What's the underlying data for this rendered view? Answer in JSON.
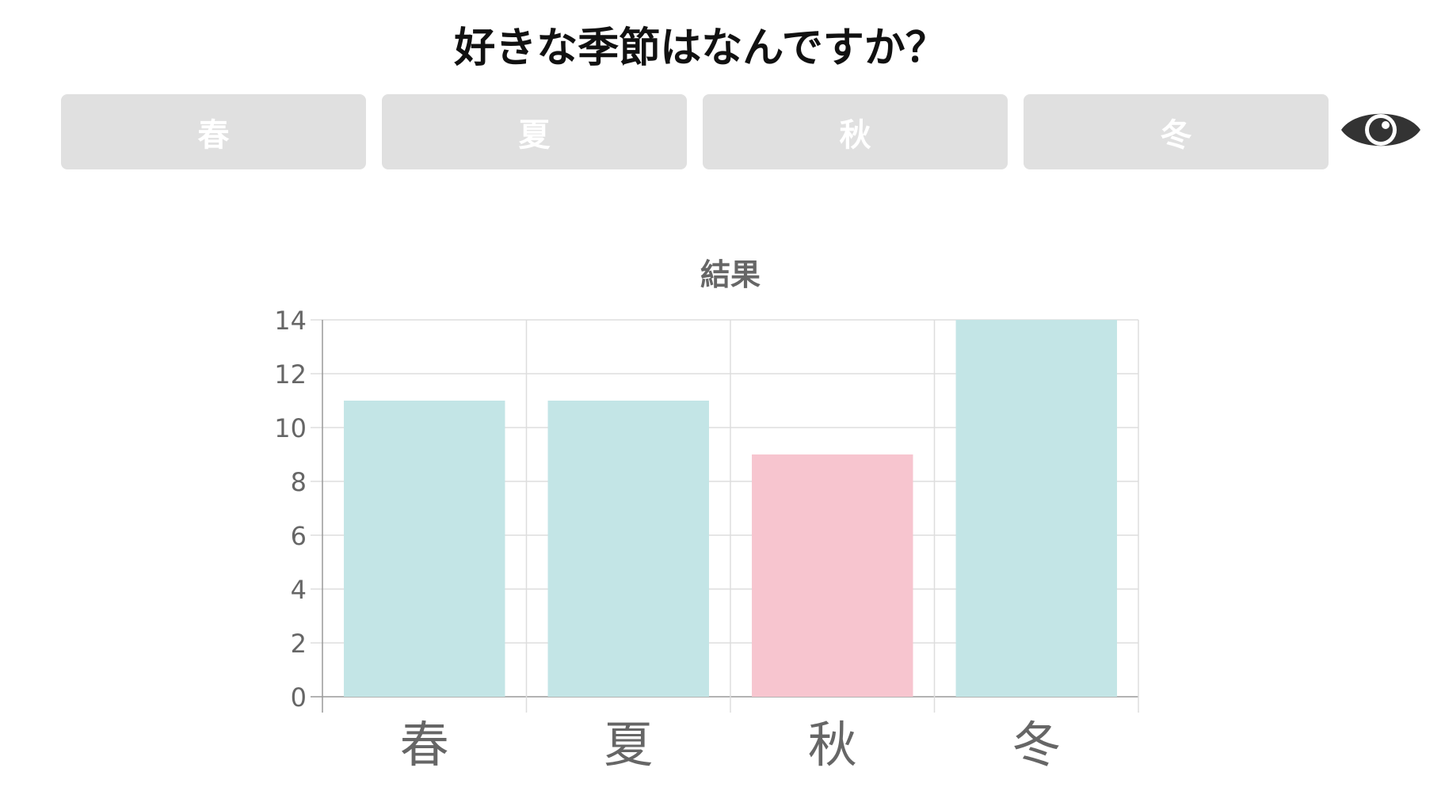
{
  "question": "好きな季節はなんですか？",
  "choices": [
    {
      "label": "春",
      "color": "#e0e0e0"
    },
    {
      "label": "夏",
      "color": "#e0e0e0"
    },
    {
      "label": "秋",
      "color": "#e0e0e0"
    },
    {
      "label": "冬",
      "color": "#e0e0e0"
    }
  ],
  "toggle_icon": "eye-icon",
  "colors": {
    "choice_bg": "#e0e0e0",
    "choice_text": "#ffffff",
    "icon": "#333333",
    "bar_default": "#c3e5e6",
    "bar_highlight": "#f7c5cf",
    "grid": "#dddddd",
    "axis_text": "#666666"
  },
  "chart_data": {
    "type": "bar",
    "title": "結果",
    "categories": [
      "春",
      "夏",
      "秋",
      "冬"
    ],
    "values": [
      11,
      11,
      9,
      14
    ],
    "bar_colors": [
      "#c3e5e6",
      "#c3e5e6",
      "#f7c5cf",
      "#c3e5e6"
    ],
    "ylim": [
      0,
      14
    ],
    "yticks": [
      0,
      2,
      4,
      6,
      8,
      10,
      12,
      14
    ],
    "grid": true,
    "legend": "none",
    "xlabel": "",
    "ylabel": ""
  }
}
